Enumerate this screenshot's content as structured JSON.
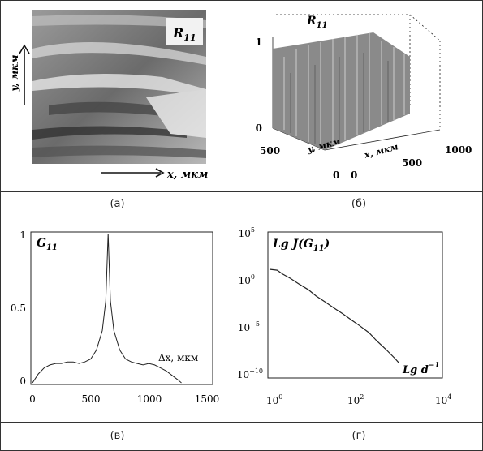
{
  "panels": {
    "a": {
      "caption": "(а)",
      "label": "R",
      "label_sub": "11",
      "x_axis": "x, мкм",
      "y_axis": "y, мкм"
    },
    "b": {
      "caption": "(б)",
      "label": "R",
      "label_sub": "11",
      "z_ticks": [
        "1",
        "0"
      ],
      "y_axis": "y, мкм",
      "x_axis": "x, мкм",
      "y_ticks": [
        "500",
        "0"
      ],
      "x_ticks": [
        "0",
        "500",
        "1000"
      ]
    },
    "c": {
      "caption": "(в)",
      "label": "G",
      "label_sub": "11",
      "xlabel": "Δx, мкм",
      "x_ticks": [
        "0",
        "500",
        "1000",
        "1500"
      ],
      "y_ticks": [
        "1",
        "0.5",
        "0"
      ]
    },
    "d": {
      "caption": "(г)",
      "label": "Lg J(G",
      "label_sub": "11",
      "label_end": ")",
      "xlabel": "Lg d",
      "xlabel_sup": "−1",
      "x_ticks": [
        "10",
        "10",
        "10"
      ],
      "x_tick_exps": [
        "0",
        "2",
        "4"
      ],
      "y_ticks": [
        "10",
        "10",
        "10",
        "10"
      ],
      "y_tick_exps": [
        "5",
        "0",
        "−5",
        "−10"
      ]
    }
  },
  "chart_data": [
    {
      "type": "line",
      "title": "",
      "label": "G11",
      "xlabel": "Δx, мкм",
      "ylabel": "",
      "xlim": [
        0,
        1500
      ],
      "ylim": [
        0,
        1
      ],
      "x": [
        0,
        50,
        100,
        150,
        200,
        250,
        300,
        350,
        400,
        450,
        500,
        550,
        600,
        630,
        650,
        670,
        700,
        750,
        800,
        850,
        900,
        950,
        1000,
        1050,
        1100,
        1150,
        1200,
        1250,
        1280
      ],
      "y": [
        0.0,
        0.06,
        0.1,
        0.12,
        0.13,
        0.13,
        0.14,
        0.14,
        0.13,
        0.14,
        0.16,
        0.22,
        0.35,
        0.55,
        1.0,
        0.55,
        0.35,
        0.22,
        0.16,
        0.14,
        0.13,
        0.12,
        0.13,
        0.12,
        0.1,
        0.08,
        0.05,
        0.02,
        0.0
      ]
    },
    {
      "type": "line",
      "title": "",
      "label": "Lg J(G11)",
      "xlabel": "Lg d^-1",
      "ylabel": "",
      "x_scale": "log",
      "y_scale": "log",
      "xlim": [
        1,
        10000
      ],
      "ylim": [
        1e-11,
        100000.0
      ],
      "x": [
        1,
        1.5,
        2,
        3,
        5,
        8,
        12,
        20,
        30,
        50,
        80,
        120,
        200,
        300,
        500,
        800,
        1000
      ],
      "y": [
        10,
        8,
        3,
        1,
        0.2,
        0.05,
        0.01,
        0.002,
        0.0005,
        0.0001,
        2e-05,
        5e-06,
        8e-07,
        1e-07,
        1e-08,
        1e-09,
        3e-10
      ]
    }
  ]
}
